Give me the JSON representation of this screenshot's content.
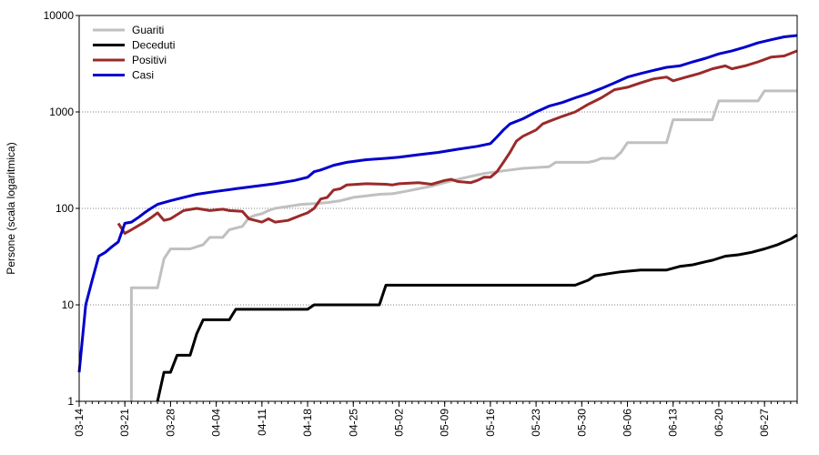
{
  "chart_data": {
    "type": "line",
    "title": "",
    "xlabel": "",
    "ylabel": "Persone (scala logaritmica)",
    "yscale": "log",
    "ylim": [
      1,
      10000
    ],
    "y_ticks": [
      1,
      10,
      100,
      1000,
      10000
    ],
    "y_tick_labels": [
      "1",
      "10",
      "100",
      "1000",
      "10000"
    ],
    "x_range": [
      "03-14",
      "07-02"
    ],
    "x_ticks": [
      "03-14",
      "03-21",
      "03-28",
      "04-04",
      "04-11",
      "04-18",
      "04-25",
      "05-02",
      "05-09",
      "05-16",
      "05-23",
      "05-30",
      "06-06",
      "06-13",
      "06-20",
      "06-27"
    ],
    "grid": "horizontal-dotted",
    "legend_position": "top-left",
    "series": [
      {
        "name": "Guariti",
        "color": "#c0c0c0",
        "points": [
          [
            "03-22",
            1
          ],
          [
            "03-22",
            15
          ],
          [
            "03-26",
            15
          ],
          [
            "03-27",
            30
          ],
          [
            "03-28",
            38
          ],
          [
            "03-31",
            38
          ],
          [
            "04-01",
            40
          ],
          [
            "04-02",
            42
          ],
          [
            "04-03",
            50
          ],
          [
            "04-05",
            50
          ],
          [
            "04-06",
            60
          ],
          [
            "04-08",
            65
          ],
          [
            "04-09",
            80
          ],
          [
            "04-10",
            85
          ],
          [
            "04-11",
            88
          ],
          [
            "04-12",
            95
          ],
          [
            "04-13",
            100
          ],
          [
            "04-15",
            105
          ],
          [
            "04-17",
            110
          ],
          [
            "04-19",
            112
          ],
          [
            "04-21",
            115
          ],
          [
            "04-23",
            120
          ],
          [
            "04-25",
            130
          ],
          [
            "04-27",
            135
          ],
          [
            "04-29",
            140
          ],
          [
            "05-01",
            142
          ],
          [
            "05-03",
            150
          ],
          [
            "05-05",
            160
          ],
          [
            "05-07",
            170
          ],
          [
            "05-09",
            185
          ],
          [
            "05-11",
            200
          ],
          [
            "05-13",
            215
          ],
          [
            "05-15",
            230
          ],
          [
            "05-17",
            240
          ],
          [
            "05-19",
            250
          ],
          [
            "05-21",
            260
          ],
          [
            "05-25",
            270
          ],
          [
            "05-26",
            300
          ],
          [
            "05-31",
            300
          ],
          [
            "06-01",
            310
          ],
          [
            "06-02",
            330
          ],
          [
            "06-04",
            330
          ],
          [
            "06-05",
            380
          ],
          [
            "06-06",
            480
          ],
          [
            "06-12",
            480
          ],
          [
            "06-13",
            830
          ],
          [
            "06-19",
            830
          ],
          [
            "06-20",
            1300
          ],
          [
            "06-26",
            1300
          ],
          [
            "06-27",
            1650
          ],
          [
            "07-02",
            1650
          ]
        ]
      },
      {
        "name": "Deceduti",
        "color": "#000000",
        "points": [
          [
            "03-26",
            1
          ],
          [
            "03-27",
            2
          ],
          [
            "03-28",
            2
          ],
          [
            "03-29",
            3
          ],
          [
            "03-31",
            3
          ],
          [
            "04-01",
            5
          ],
          [
            "04-02",
            7
          ],
          [
            "04-06",
            7
          ],
          [
            "04-07",
            9
          ],
          [
            "04-17",
            9
          ],
          [
            "04-18",
            9
          ],
          [
            "04-19",
            10
          ],
          [
            "04-29",
            10
          ],
          [
            "04-30",
            16
          ],
          [
            "05-29",
            16
          ],
          [
            "05-30",
            17
          ],
          [
            "05-31",
            18
          ],
          [
            "06-01",
            20
          ],
          [
            "06-03",
            21
          ],
          [
            "06-05",
            22
          ],
          [
            "06-08",
            23
          ],
          [
            "06-12",
            23
          ],
          [
            "06-14",
            25
          ],
          [
            "06-16",
            26
          ],
          [
            "06-18",
            28
          ],
          [
            "06-19",
            29
          ],
          [
            "06-21",
            32
          ],
          [
            "06-23",
            33
          ],
          [
            "06-25",
            35
          ],
          [
            "06-27",
            38
          ],
          [
            "06-29",
            42
          ],
          [
            "07-01",
            48
          ],
          [
            "07-02",
            53
          ]
        ]
      },
      {
        "name": "Positivi",
        "color": "#9b2a2a",
        "points": [
          [
            "03-20",
            70
          ],
          [
            "03-21",
            55
          ],
          [
            "03-22",
            60
          ],
          [
            "03-24",
            72
          ],
          [
            "03-25",
            80
          ],
          [
            "03-26",
            90
          ],
          [
            "03-27",
            75
          ],
          [
            "03-28",
            78
          ],
          [
            "03-30",
            95
          ],
          [
            "04-01",
            100
          ],
          [
            "04-03",
            95
          ],
          [
            "04-05",
            98
          ],
          [
            "04-06",
            95
          ],
          [
            "04-08",
            93
          ],
          [
            "04-09",
            78
          ],
          [
            "04-11",
            72
          ],
          [
            "04-12",
            78
          ],
          [
            "04-13",
            72
          ],
          [
            "04-15",
            75
          ],
          [
            "04-17",
            85
          ],
          [
            "04-18",
            90
          ],
          [
            "04-19",
            100
          ],
          [
            "04-20",
            125
          ],
          [
            "04-21",
            130
          ],
          [
            "04-22",
            155
          ],
          [
            "04-23",
            160
          ],
          [
            "04-24",
            175
          ],
          [
            "04-27",
            180
          ],
          [
            "04-30",
            178
          ],
          [
            "05-01",
            175
          ],
          [
            "05-02",
            180
          ],
          [
            "05-05",
            185
          ],
          [
            "05-07",
            178
          ],
          [
            "05-09",
            195
          ],
          [
            "05-10",
            200
          ],
          [
            "05-11",
            190
          ],
          [
            "05-13",
            185
          ],
          [
            "05-14",
            195
          ],
          [
            "05-15",
            210
          ],
          [
            "05-16",
            210
          ],
          [
            "05-17",
            240
          ],
          [
            "05-18",
            300
          ],
          [
            "05-19",
            380
          ],
          [
            "05-20",
            500
          ],
          [
            "05-21",
            560
          ],
          [
            "05-23",
            650
          ],
          [
            "05-24",
            750
          ],
          [
            "05-25",
            800
          ],
          [
            "05-27",
            900
          ],
          [
            "05-29",
            1000
          ],
          [
            "05-31",
            1200
          ],
          [
            "06-02",
            1400
          ],
          [
            "06-04",
            1700
          ],
          [
            "06-06",
            1800
          ],
          [
            "06-08",
            2000
          ],
          [
            "06-10",
            2200
          ],
          [
            "06-12",
            2300
          ],
          [
            "06-13",
            2100
          ],
          [
            "06-15",
            2300
          ],
          [
            "06-17",
            2500
          ],
          [
            "06-19",
            2800
          ],
          [
            "06-21",
            3000
          ],
          [
            "06-22",
            2800
          ],
          [
            "06-24",
            3000
          ],
          [
            "06-26",
            3300
          ],
          [
            "06-28",
            3700
          ],
          [
            "06-30",
            3800
          ],
          [
            "07-02",
            4300
          ]
        ]
      },
      {
        "name": "Casi",
        "color": "#0000cc",
        "points": [
          [
            "03-14",
            2
          ],
          [
            "03-15",
            10
          ],
          [
            "03-16",
            18
          ],
          [
            "03-17",
            32
          ],
          [
            "03-18",
            35
          ],
          [
            "03-19",
            40
          ],
          [
            "03-20",
            45
          ],
          [
            "03-21",
            70
          ],
          [
            "03-22",
            72
          ],
          [
            "03-23",
            80
          ],
          [
            "03-24",
            90
          ],
          [
            "03-25",
            100
          ],
          [
            "03-26",
            110
          ],
          [
            "03-27",
            115
          ],
          [
            "03-28",
            120
          ],
          [
            "03-30",
            130
          ],
          [
            "04-01",
            140
          ],
          [
            "04-04",
            150
          ],
          [
            "04-07",
            160
          ],
          [
            "04-10",
            170
          ],
          [
            "04-13",
            180
          ],
          [
            "04-16",
            195
          ],
          [
            "04-18",
            210
          ],
          [
            "04-19",
            240
          ],
          [
            "04-20",
            250
          ],
          [
            "04-22",
            280
          ],
          [
            "04-24",
            300
          ],
          [
            "04-27",
            320
          ],
          [
            "04-30",
            330
          ],
          [
            "05-02",
            340
          ],
          [
            "05-05",
            360
          ],
          [
            "05-08",
            380
          ],
          [
            "05-11",
            410
          ],
          [
            "05-14",
            440
          ],
          [
            "05-16",
            470
          ],
          [
            "05-17",
            550
          ],
          [
            "05-18",
            650
          ],
          [
            "05-19",
            750
          ],
          [
            "05-21",
            850
          ],
          [
            "05-23",
            1000
          ],
          [
            "05-25",
            1150
          ],
          [
            "05-27",
            1250
          ],
          [
            "05-29",
            1400
          ],
          [
            "05-31",
            1550
          ],
          [
            "06-02",
            1750
          ],
          [
            "06-04",
            2000
          ],
          [
            "06-06",
            2300
          ],
          [
            "06-08",
            2500
          ],
          [
            "06-10",
            2700
          ],
          [
            "06-12",
            2900
          ],
          [
            "06-14",
            3000
          ],
          [
            "06-16",
            3300
          ],
          [
            "06-18",
            3600
          ],
          [
            "06-20",
            4000
          ],
          [
            "06-22",
            4300
          ],
          [
            "06-24",
            4700
          ],
          [
            "06-26",
            5200
          ],
          [
            "06-28",
            5600
          ],
          [
            "06-30",
            6000
          ],
          [
            "07-02",
            6200
          ]
        ]
      }
    ]
  }
}
